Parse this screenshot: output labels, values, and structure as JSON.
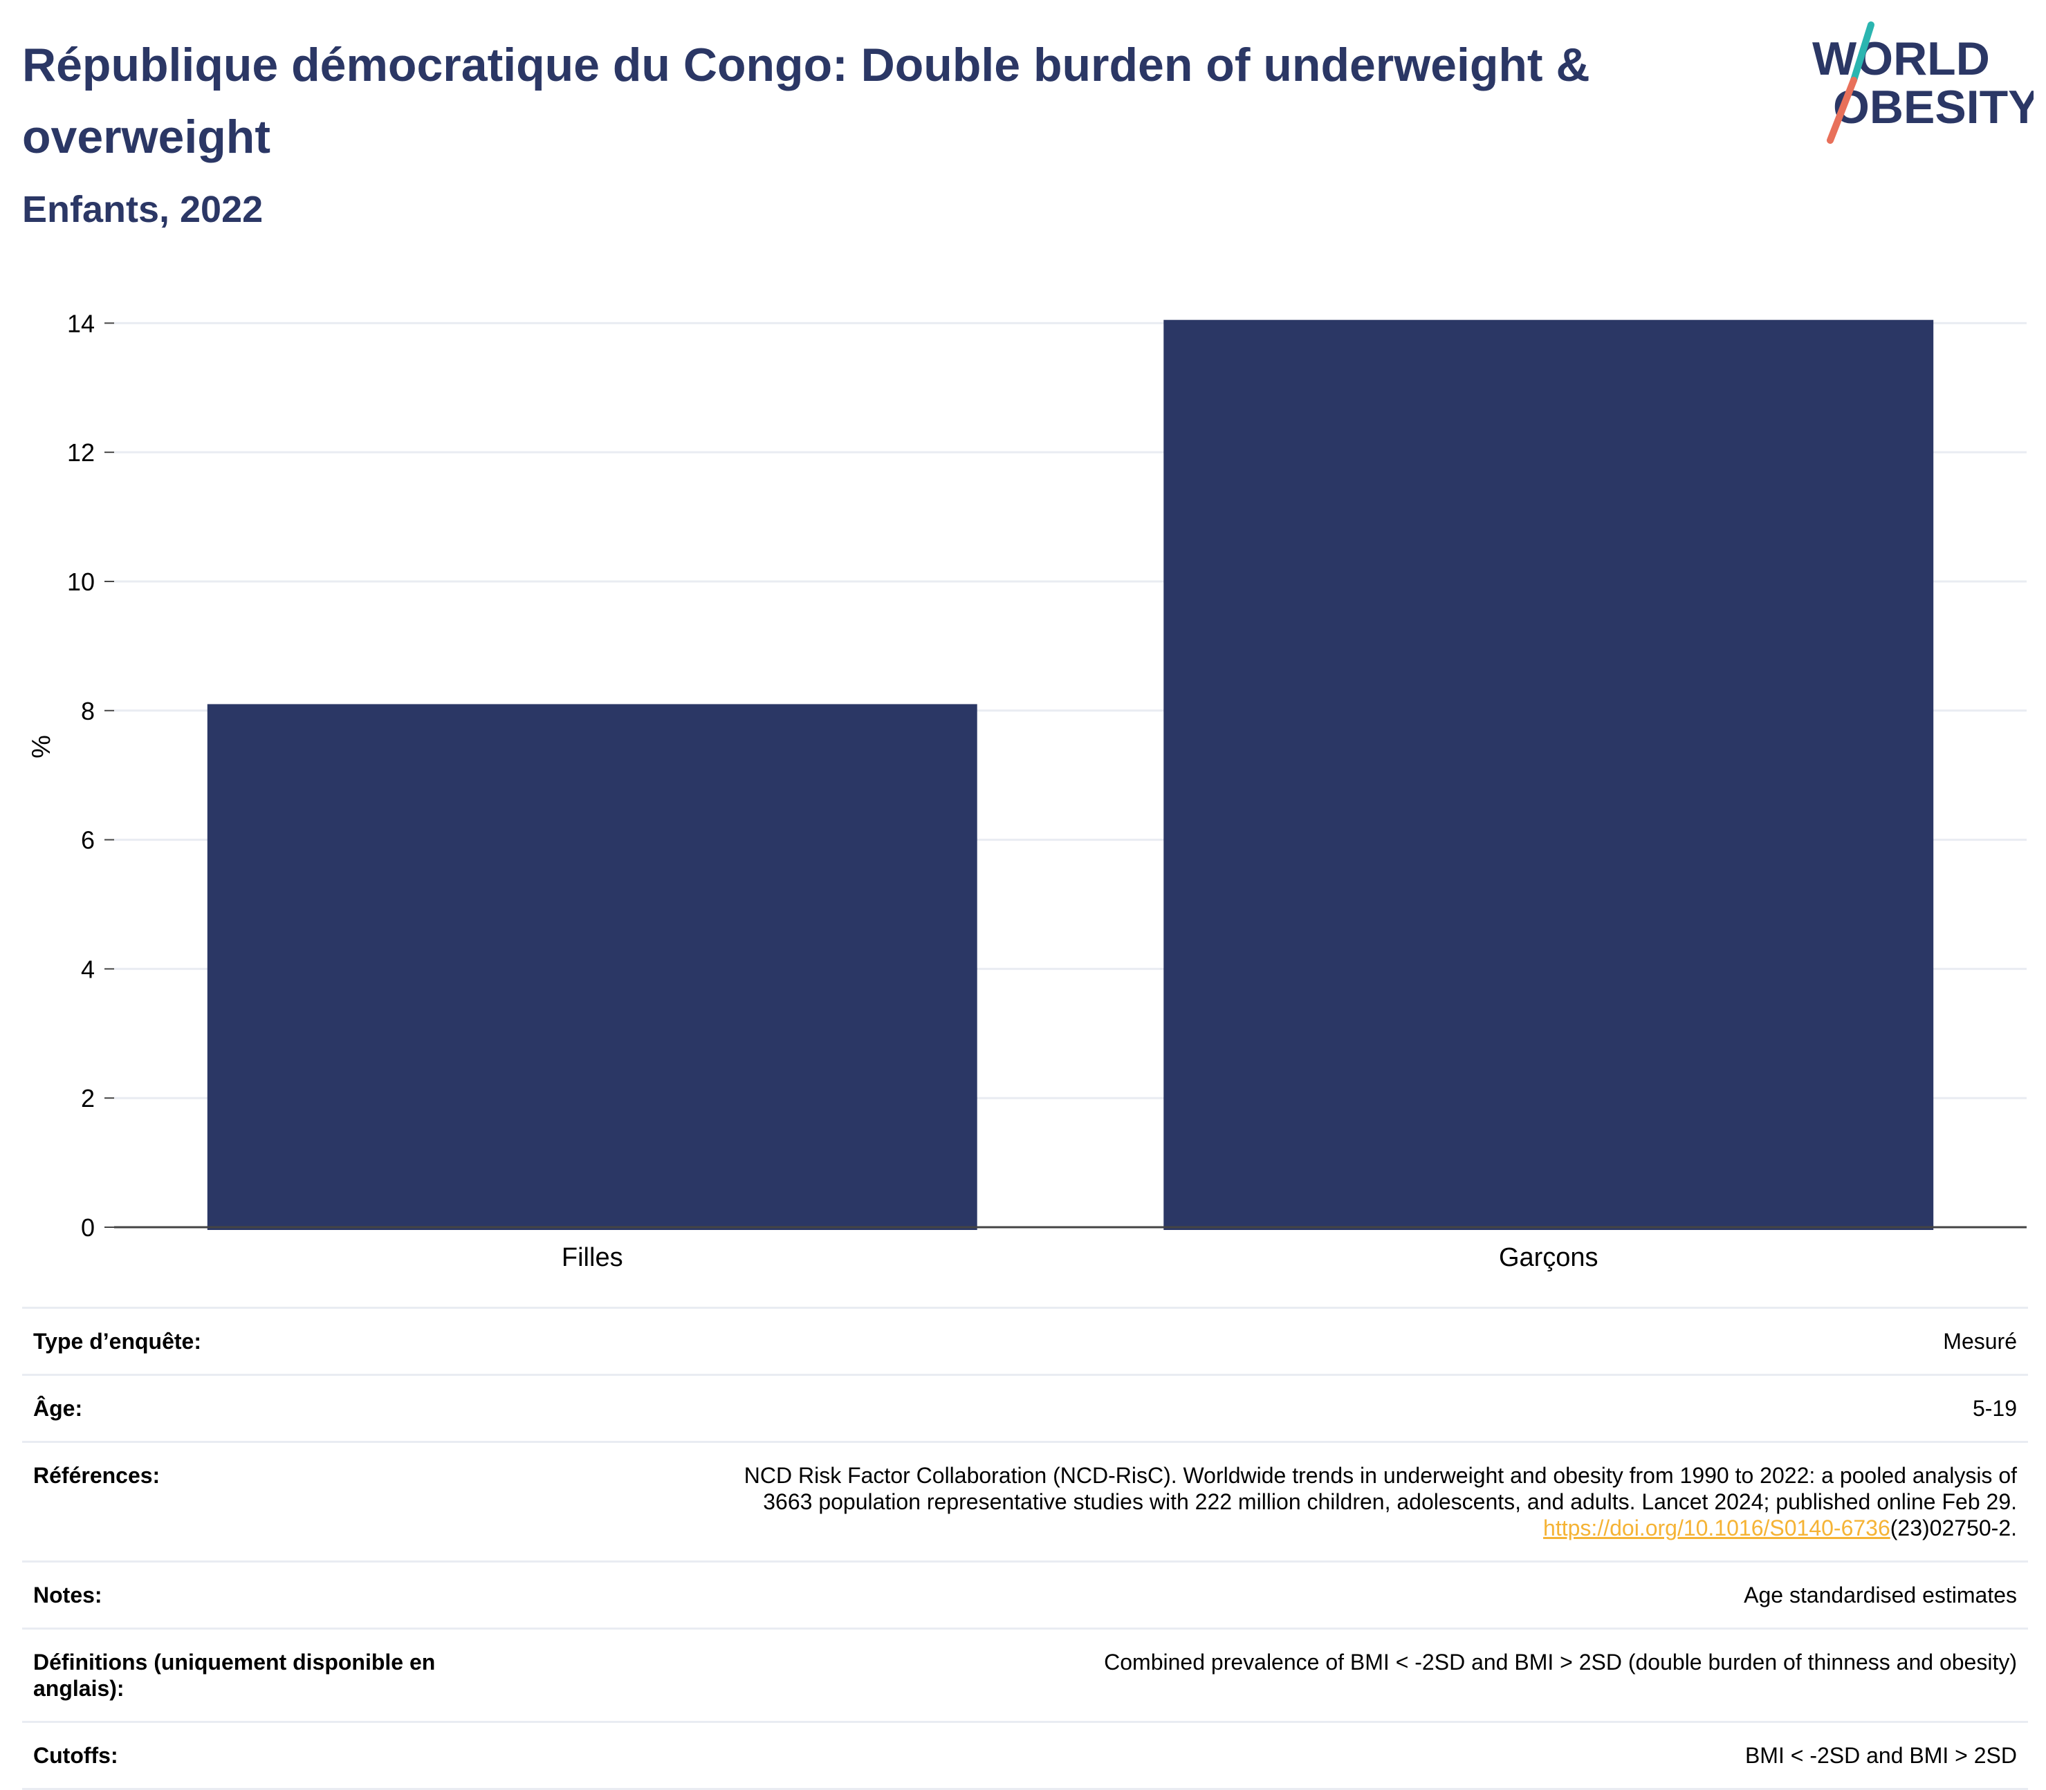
{
  "header": {
    "title": "République démocratique du Congo: Double burden of underweight & overweight",
    "subtitle": "Enfants, 2022"
  },
  "logo": {
    "line1": "WORLD",
    "line2": "OBESITY",
    "colors": {
      "navy": "#2b3765",
      "teal": "#2bb5b0",
      "coral": "#e8705a"
    }
  },
  "chart_data": {
    "type": "bar",
    "title": "République démocratique du Congo: Double burden of underweight & overweight",
    "subtitle": "Enfants, 2022",
    "categories": [
      "Filles",
      "Garçons"
    ],
    "values": [
      8.1,
      14.05
    ],
    "ylabel": "%",
    "xlabel": "",
    "ylim": [
      0,
      14.4
    ],
    "yticks": [
      0,
      2,
      4,
      6,
      8,
      10,
      12,
      14
    ],
    "grid": true,
    "bar_color": "#2b3765"
  },
  "meta": {
    "rows": [
      {
        "key": "Type d’enquête:",
        "value": "Mesuré"
      },
      {
        "key": "Âge:",
        "value": "5-19"
      },
      {
        "key": "Références:",
        "value_line1": "NCD Risk Factor Collaboration (NCD-RisC). Worldwide trends in underweight and obesity from 1990 to 2022: a pooled analysis of",
        "value_line2": "3663 population representative studies with 222 million children, adolescents, and adults. Lancet 2024; published online Feb 29.",
        "link_text": "https://doi.org/10.1016/S0140-6736",
        "link_suffix": "(23)02750-2."
      },
      {
        "key": "Notes:",
        "value": "Age standardised estimates"
      },
      {
        "key": "Définitions (uniquement disponible en anglais):",
        "value": "Combined prevalence of BMI < -2SD and BMI > 2SD (double burden of thinness and obesity)"
      },
      {
        "key": "Cutoffs:",
        "value": "BMI < -2SD and BMI > 2SD"
      }
    ]
  }
}
